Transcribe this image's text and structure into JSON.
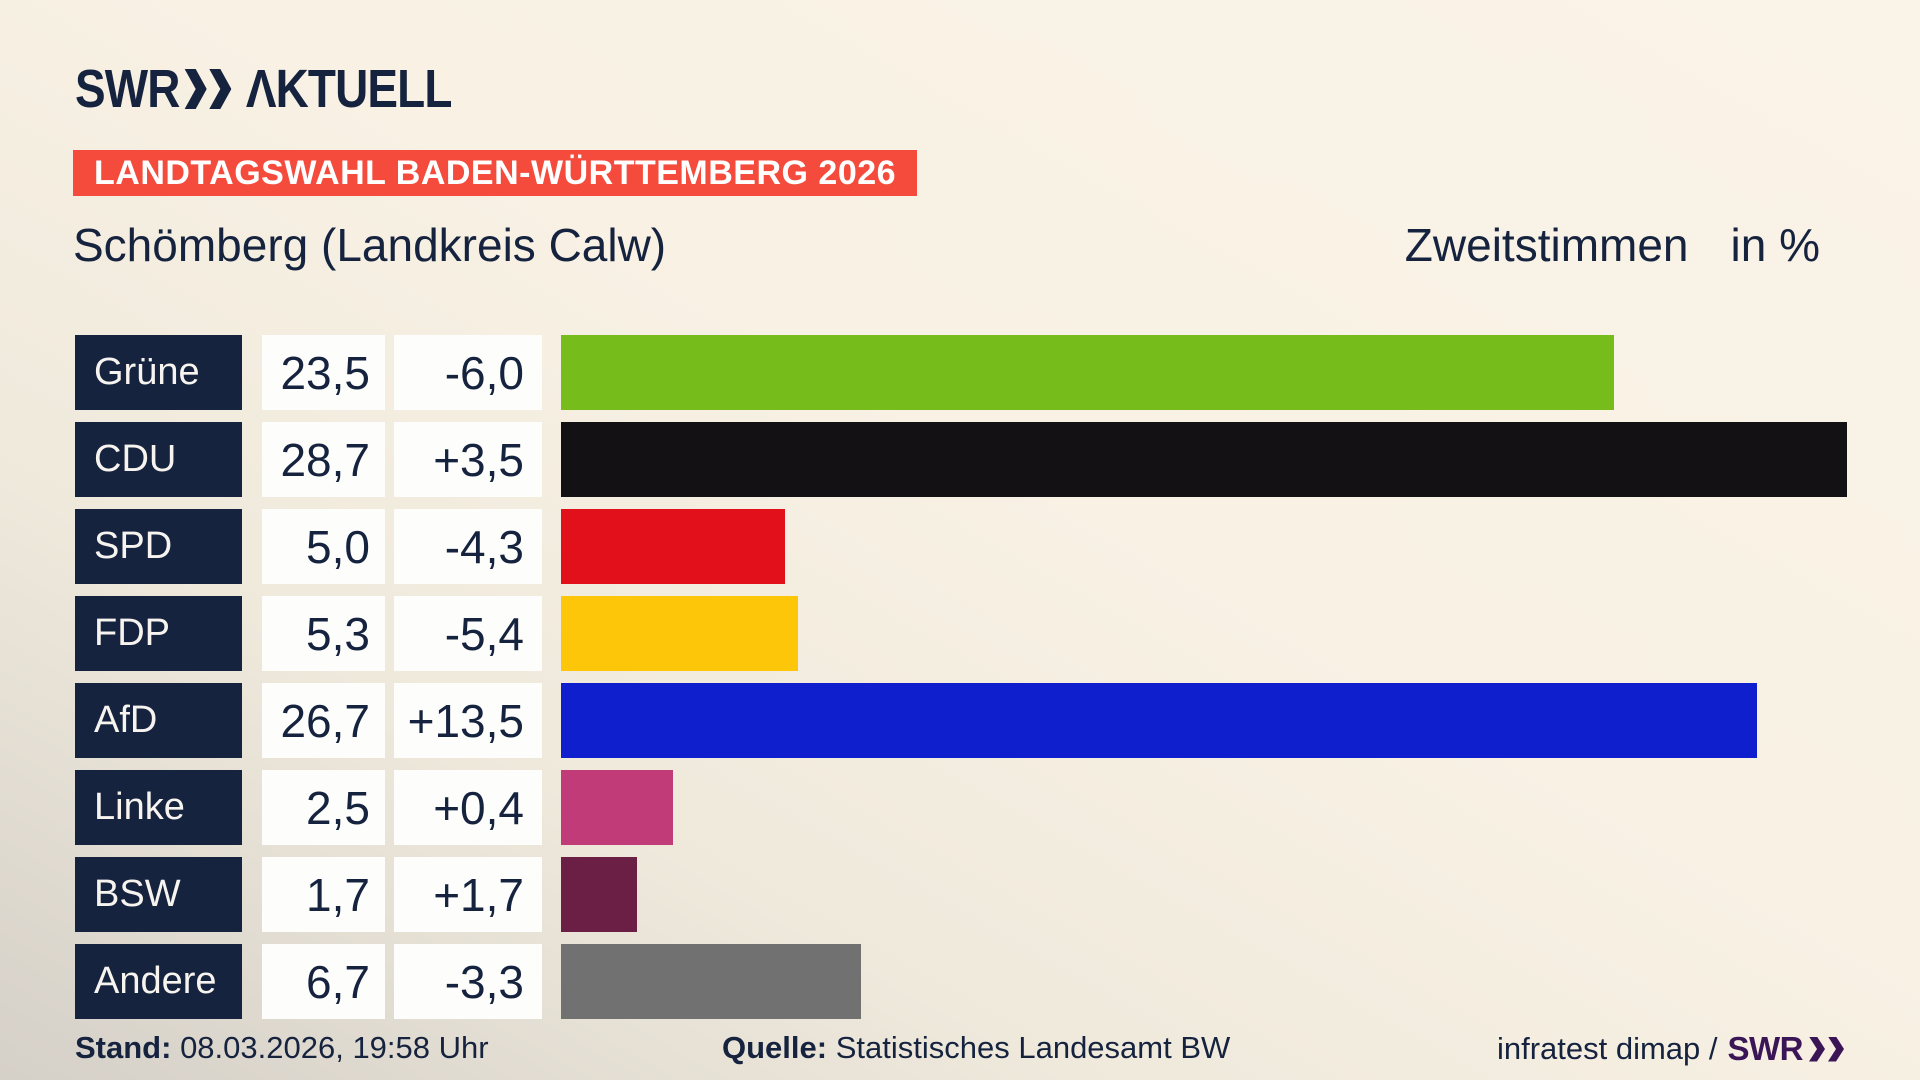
{
  "header": {
    "logo": {
      "swr": "SWR",
      "product": "ΛKTUELL"
    },
    "banner": "LANDTAGSWAHL BADEN-WÜRTTEMBERG 2026",
    "municipality": "Schömberg (Landkreis Calw)",
    "vote_type": "Zweitstimmen",
    "unit": "in %"
  },
  "chart_data": {
    "type": "bar",
    "orientation": "horizontal",
    "title": "Zweitstimmen",
    "unit": "in %",
    "categories": [
      "Grüne",
      "CDU",
      "SPD",
      "FDP",
      "AfD",
      "Linke",
      "BSW",
      "Andere"
    ],
    "values": [
      23.5,
      28.7,
      5.0,
      5.3,
      26.7,
      2.5,
      1.7,
      6.7
    ],
    "value_labels": [
      "23,5",
      "28,7",
      "5,0",
      "5,3",
      "26,7",
      "2,5",
      "1,7",
      "6,7"
    ],
    "changes": [
      -6.0,
      3.5,
      -4.3,
      -5.4,
      13.5,
      0.4,
      1.7,
      -3.3
    ],
    "change_labels": [
      "-6,0",
      "+3,5",
      "-4,3",
      "-5,4",
      "+13,5",
      "+0,4",
      "+1,7",
      "-3,3"
    ],
    "bar_colors": [
      "#76bc1b",
      "#141114",
      "#e2101a",
      "#fdc609",
      "#101fce",
      "#c23b79",
      "#6c1f45",
      "#717171"
    ],
    "xlim": [
      0,
      28.7
    ],
    "grid": false,
    "legend": false
  },
  "footer": {
    "stand_label": "Stand:",
    "stand_value": "08.03.2026, 19:58 Uhr",
    "quelle_label": "Quelle:",
    "quelle_value": "Statistisches Landesamt BW",
    "credit": "infratest dimap /",
    "swr": "SWR"
  },
  "colors": {
    "background_top": "#f8f1e4",
    "background_bottom_left": "#d5d0c8",
    "navy": "#16233e",
    "banner_red": "#f44b3c",
    "cell_white": "#fdfdfc",
    "footer_swr_purple": "#3b1656"
  },
  "icons": {
    "logo_chevrons": "double-chevron-right-icon",
    "footer_chevrons": "double-chevron-right-icon"
  }
}
